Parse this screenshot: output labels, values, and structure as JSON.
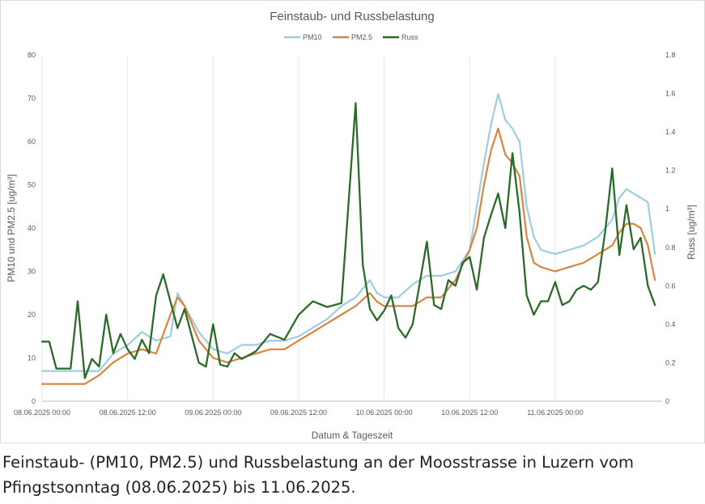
{
  "caption": "Feinstaub- (PM10, PM2.5) und Russbelastung an der Moosstrasse in Luzern vom Pfingstsonntag (08.06.2025) bis 11.06.2025.",
  "chart_data": {
    "type": "line",
    "title": "Feinstaub- und Russbelastung",
    "xlabel": "Datum & Tageszeit",
    "ylabel": "PM10 und PM2.5 [ug/m³]",
    "y2label": "Russ [ug/m³]",
    "ylim": [
      0,
      80
    ],
    "y2lim": [
      0,
      1.8
    ],
    "yticks": [
      "0",
      "10",
      "20",
      "30",
      "40",
      "50",
      "60",
      "70",
      "80"
    ],
    "y2ticks": [
      "0",
      "0.2",
      "0.4",
      "0.6",
      "0.8",
      "1",
      "1.2",
      "1.4",
      "1.6",
      "1.8"
    ],
    "xlim": [
      "2025-06-08T00:00",
      "2025-06-11T15:00"
    ],
    "xticks": [
      {
        "x": "2025-06-08T00:00",
        "label": "08.06.2025 00:00"
      },
      {
        "x": "2025-06-08T12:00",
        "label": "08.06.2025 12:00"
      },
      {
        "x": "2025-06-09T00:00",
        "label": "09.06.2025 00:00"
      },
      {
        "x": "2025-06-09T12:00",
        "label": "09.06.2025 12:00"
      },
      {
        "x": "2025-06-10T00:00",
        "label": "10.06.2025 00:00"
      },
      {
        "x": "2025-06-10T12:00",
        "label": "10.06.2025 12:00"
      },
      {
        "x": "2025-06-11T00:00",
        "label": "11.06.2025 00:00"
      }
    ],
    "legend_position": "top",
    "grid": "vertical",
    "series": [
      {
        "name": "PM10",
        "axis": "left",
        "color": "#9fcde0",
        "x": [
          "2025-06-08T00:00",
          "2025-06-08T02:00",
          "2025-06-08T04:00",
          "2025-06-08T06:00",
          "2025-06-08T08:00",
          "2025-06-08T10:00",
          "2025-06-08T12:00",
          "2025-06-08T14:00",
          "2025-06-08T16:00",
          "2025-06-08T18:00",
          "2025-06-08T19:00",
          "2025-06-08T20:00",
          "2025-06-08T22:00",
          "2025-06-09T00:00",
          "2025-06-09T02:00",
          "2025-06-09T04:00",
          "2025-06-09T06:00",
          "2025-06-09T08:00",
          "2025-06-09T10:00",
          "2025-06-09T12:00",
          "2025-06-09T14:00",
          "2025-06-09T16:00",
          "2025-06-09T18:00",
          "2025-06-09T20:00",
          "2025-06-09T22:00",
          "2025-06-09T23:00",
          "2025-06-10T00:00",
          "2025-06-10T02:00",
          "2025-06-10T04:00",
          "2025-06-10T06:00",
          "2025-06-10T08:00",
          "2025-06-10T10:00",
          "2025-06-10T12:00",
          "2025-06-10T13:00",
          "2025-06-10T14:00",
          "2025-06-10T15:00",
          "2025-06-10T16:00",
          "2025-06-10T17:00",
          "2025-06-10T18:00",
          "2025-06-10T19:00",
          "2025-06-10T20:00",
          "2025-06-10T21:00",
          "2025-06-10T22:00",
          "2025-06-11T00:00",
          "2025-06-11T02:00",
          "2025-06-11T04:00",
          "2025-06-11T06:00",
          "2025-06-11T08:00",
          "2025-06-11T09:00",
          "2025-06-11T10:00",
          "2025-06-11T11:00",
          "2025-06-11T12:00",
          "2025-06-11T13:00",
          "2025-06-11T14:00"
        ],
        "values": [
          7,
          7,
          7,
          7,
          7,
          11,
          13,
          16,
          14,
          15,
          25,
          22,
          16,
          12,
          11,
          13,
          13,
          14,
          14,
          15,
          17,
          19,
          22,
          24,
          28,
          25,
          24,
          24,
          27,
          29,
          29,
          30,
          35,
          45,
          55,
          64,
          71,
          65,
          63,
          60,
          45,
          38,
          35,
          34,
          35,
          36,
          38,
          42,
          47,
          49,
          48,
          47,
          46,
          34
        ]
      },
      {
        "name": "PM2.5",
        "axis": "left",
        "color": "#d9843f",
        "x": [
          "2025-06-08T00:00",
          "2025-06-08T02:00",
          "2025-06-08T04:00",
          "2025-06-08T06:00",
          "2025-06-08T08:00",
          "2025-06-08T10:00",
          "2025-06-08T12:00",
          "2025-06-08T14:00",
          "2025-06-08T16:00",
          "2025-06-08T18:00",
          "2025-06-08T19:00",
          "2025-06-08T20:00",
          "2025-06-08T22:00",
          "2025-06-09T00:00",
          "2025-06-09T02:00",
          "2025-06-09T04:00",
          "2025-06-09T06:00",
          "2025-06-09T08:00",
          "2025-06-09T10:00",
          "2025-06-09T12:00",
          "2025-06-09T14:00",
          "2025-06-09T16:00",
          "2025-06-09T18:00",
          "2025-06-09T20:00",
          "2025-06-09T22:00",
          "2025-06-09T23:00",
          "2025-06-10T00:00",
          "2025-06-10T02:00",
          "2025-06-10T04:00",
          "2025-06-10T06:00",
          "2025-06-10T08:00",
          "2025-06-10T10:00",
          "2025-06-10T12:00",
          "2025-06-10T13:00",
          "2025-06-10T14:00",
          "2025-06-10T15:00",
          "2025-06-10T16:00",
          "2025-06-10T17:00",
          "2025-06-10T18:00",
          "2025-06-10T19:00",
          "2025-06-10T20:00",
          "2025-06-10T21:00",
          "2025-06-10T22:00",
          "2025-06-11T00:00",
          "2025-06-11T02:00",
          "2025-06-11T04:00",
          "2025-06-11T06:00",
          "2025-06-11T08:00",
          "2025-06-11T09:00",
          "2025-06-11T10:00",
          "2025-06-11T11:00",
          "2025-06-11T12:00",
          "2025-06-11T13:00",
          "2025-06-11T14:00"
        ],
        "values": [
          4,
          4,
          4,
          4,
          6,
          9,
          11,
          12,
          11,
          20,
          24,
          22,
          14,
          10,
          9,
          10,
          11,
          12,
          12,
          14,
          16,
          18,
          20,
          22,
          25,
          23,
          22,
          22,
          22,
          24,
          24,
          28,
          35,
          40,
          50,
          58,
          63,
          57,
          55,
          52,
          38,
          32,
          31,
          30,
          31,
          32,
          34,
          36,
          39,
          41,
          41,
          40,
          36,
          28
        ]
      },
      {
        "name": "Russ",
        "axis": "right",
        "color": "#2a6b2a",
        "x": [
          "2025-06-08T00:00",
          "2025-06-08T01:00",
          "2025-06-08T02:00",
          "2025-06-08T04:00",
          "2025-06-08T05:00",
          "2025-06-08T06:00",
          "2025-06-08T07:00",
          "2025-06-08T08:00",
          "2025-06-08T09:00",
          "2025-06-08T10:00",
          "2025-06-08T11:00",
          "2025-06-08T12:00",
          "2025-06-08T13:00",
          "2025-06-08T14:00",
          "2025-06-08T15:00",
          "2025-06-08T16:00",
          "2025-06-08T17:00",
          "2025-06-08T18:00",
          "2025-06-08T19:00",
          "2025-06-08T20:00",
          "2025-06-08T21:00",
          "2025-06-08T22:00",
          "2025-06-08T23:00",
          "2025-06-09T00:00",
          "2025-06-09T01:00",
          "2025-06-09T02:00",
          "2025-06-09T03:00",
          "2025-06-09T04:00",
          "2025-06-09T06:00",
          "2025-06-09T08:00",
          "2025-06-09T10:00",
          "2025-06-09T12:00",
          "2025-06-09T14:00",
          "2025-06-09T16:00",
          "2025-06-09T18:00",
          "2025-06-09T20:00",
          "2025-06-09T21:00",
          "2025-06-09T22:00",
          "2025-06-09T23:00",
          "2025-06-10T00:00",
          "2025-06-10T01:00",
          "2025-06-10T02:00",
          "2025-06-10T03:00",
          "2025-06-10T04:00",
          "2025-06-10T06:00",
          "2025-06-10T07:00",
          "2025-06-10T08:00",
          "2025-06-10T09:00",
          "2025-06-10T10:00",
          "2025-06-10T11:00",
          "2025-06-10T12:00",
          "2025-06-10T13:00",
          "2025-06-10T14:00",
          "2025-06-10T15:00",
          "2025-06-10T16:00",
          "2025-06-10T17:00",
          "2025-06-10T18:00",
          "2025-06-10T19:00",
          "2025-06-10T20:00",
          "2025-06-10T21:00",
          "2025-06-10T22:00",
          "2025-06-10T23:00",
          "2025-06-11T00:00",
          "2025-06-11T01:00",
          "2025-06-11T02:00",
          "2025-06-11T03:00",
          "2025-06-11T04:00",
          "2025-06-11T05:00",
          "2025-06-11T06:00",
          "2025-06-11T07:00",
          "2025-06-11T08:00",
          "2025-06-11T09:00",
          "2025-06-11T10:00",
          "2025-06-11T11:00",
          "2025-06-11T12:00",
          "2025-06-11T13:00",
          "2025-06-11T14:00"
        ],
        "values": [
          0.31,
          0.31,
          0.17,
          0.17,
          0.52,
          0.12,
          0.22,
          0.18,
          0.45,
          0.25,
          0.35,
          0.27,
          0.22,
          0.32,
          0.25,
          0.55,
          0.66,
          0.52,
          0.38,
          0.48,
          0.34,
          0.2,
          0.18,
          0.4,
          0.19,
          0.18,
          0.25,
          0.22,
          0.26,
          0.35,
          0.32,
          0.45,
          0.52,
          0.49,
          0.51,
          1.55,
          0.71,
          0.48,
          0.42,
          0.47,
          0.55,
          0.38,
          0.33,
          0.4,
          0.83,
          0.5,
          0.48,
          0.63,
          0.6,
          0.72,
          0.75,
          0.58,
          0.85,
          0.97,
          1.08,
          0.9,
          1.29,
          0.98,
          0.55,
          0.45,
          0.52,
          0.52,
          0.62,
          0.5,
          0.52,
          0.58,
          0.6,
          0.58,
          0.62,
          0.88,
          1.21,
          0.76,
          1.02,
          0.79,
          0.85,
          0.6,
          0.5
        ]
      }
    ]
  }
}
